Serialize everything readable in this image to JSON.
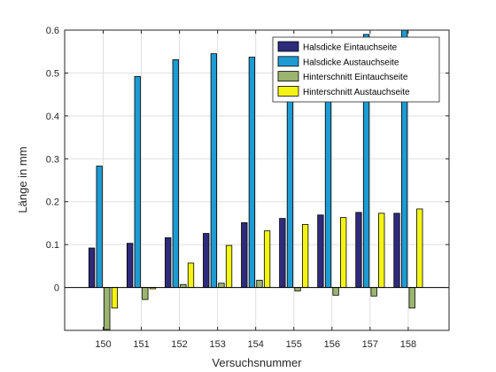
{
  "chart_data": {
    "type": "bar",
    "xlabel": "Versuchsnummer",
    "ylabel": "Länge in mm",
    "categories": [
      "150",
      "151",
      "152",
      "153",
      "154",
      "155",
      "156",
      "157",
      "158"
    ],
    "ylim": [
      -0.1,
      0.6
    ],
    "yticks": [
      0,
      0.1,
      0.2,
      0.3,
      0.4,
      0.5,
      0.6
    ],
    "ytick_labels": [
      "0",
      "0.1",
      "0.2",
      "0.3",
      "0.4",
      "0.5",
      "0.6"
    ],
    "grid": true,
    "legend_position": "top-right",
    "series": [
      {
        "name": "Halsdicke Eintauchseite",
        "color": "#2e2a7c",
        "values": [
          0.092,
          0.103,
          0.116,
          0.126,
          0.151,
          0.161,
          0.169,
          0.175,
          0.173
        ]
      },
      {
        "name": "Halsdicke Austauchseite",
        "color": "#1e9bd3",
        "values": [
          0.283,
          0.492,
          0.531,
          0.545,
          0.537,
          0.56,
          0.58,
          0.59,
          0.6
        ]
      },
      {
        "name": "Hinterschnitt Eintauchseite",
        "color": "#9bb56e",
        "values": [
          -0.098,
          -0.028,
          0.007,
          0.01,
          0.017,
          -0.008,
          -0.018,
          -0.02,
          -0.048
        ]
      },
      {
        "name": "Hinterschnitt Austauchseite",
        "color": "#f4f414",
        "values": [
          -0.048,
          -0.003,
          0.057,
          0.098,
          0.132,
          0.147,
          0.163,
          0.173,
          0.183
        ]
      }
    ]
  }
}
